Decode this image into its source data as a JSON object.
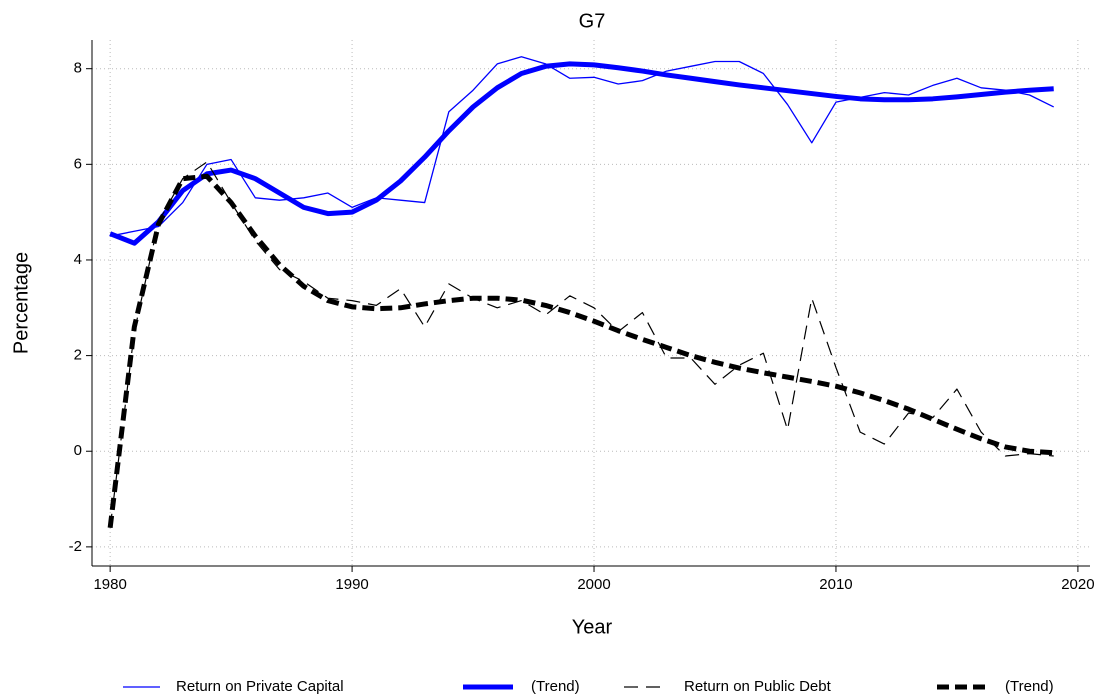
{
  "chart_data": {
    "type": "line",
    "title": "G7",
    "xlabel": "Year",
    "ylabel": "Percentage",
    "x": [
      1980,
      1981,
      1982,
      1983,
      1984,
      1985,
      1986,
      1987,
      1988,
      1989,
      1990,
      1991,
      1992,
      1993,
      1994,
      1995,
      1996,
      1997,
      1998,
      1999,
      2000,
      2001,
      2002,
      2003,
      2004,
      2005,
      2006,
      2007,
      2008,
      2009,
      2010,
      2011,
      2012,
      2013,
      2014,
      2015,
      2016,
      2017,
      2018,
      2019
    ],
    "series": [
      {
        "name": "Return on Private Capital",
        "color": "#0000ff",
        "line_width": 1.3,
        "dash": "none",
        "values": [
          4.5,
          4.6,
          4.7,
          5.2,
          6.0,
          6.1,
          5.3,
          5.25,
          5.3,
          5.4,
          5.1,
          5.3,
          5.25,
          5.2,
          7.1,
          7.55,
          8.1,
          8.25,
          8.1,
          7.8,
          7.82,
          7.68,
          7.75,
          7.95,
          8.05,
          8.15,
          8.15,
          7.9,
          7.25,
          6.45,
          7.3,
          7.4,
          7.5,
          7.45,
          7.65,
          7.8,
          7.6,
          7.55,
          7.45,
          7.2
        ]
      },
      {
        "name": "(Trend)",
        "color": "#0000ff",
        "line_width": 5,
        "dash": "none",
        "values": [
          4.55,
          4.35,
          4.8,
          5.45,
          5.8,
          5.88,
          5.7,
          5.4,
          5.1,
          4.97,
          5.0,
          5.25,
          5.65,
          6.15,
          6.7,
          7.2,
          7.6,
          7.9,
          8.05,
          8.1,
          8.08,
          8.02,
          7.95,
          7.87,
          7.8,
          7.73,
          7.66,
          7.6,
          7.54,
          7.48,
          7.42,
          7.37,
          7.35,
          7.35,
          7.37,
          7.41,
          7.46,
          7.51,
          7.55,
          7.58
        ]
      },
      {
        "name": "Return on Public Debt",
        "color": "#000000",
        "line_width": 1.2,
        "dash": "14 8",
        "values": [
          -1.6,
          2.5,
          4.8,
          5.7,
          6.05,
          5.2,
          4.4,
          3.8,
          3.55,
          3.2,
          3.15,
          3.05,
          3.4,
          2.6,
          3.5,
          3.2,
          3.0,
          3.15,
          2.85,
          3.25,
          3.0,
          2.5,
          2.9,
          1.95,
          1.95,
          1.4,
          1.8,
          2.05,
          0.45,
          3.2,
          1.75,
          0.4,
          0.15,
          0.8,
          0.7,
          1.3,
          0.4,
          -0.1,
          -0.05,
          -0.1
        ]
      },
      {
        "name": "(Trend)",
        "color": "#000000",
        "line_width": 5,
        "dash": "12 6",
        "values": [
          -1.6,
          2.6,
          4.75,
          5.7,
          5.75,
          5.2,
          4.5,
          3.9,
          3.45,
          3.15,
          3.02,
          2.98,
          3.0,
          3.08,
          3.15,
          3.2,
          3.2,
          3.16,
          3.05,
          2.9,
          2.72,
          2.52,
          2.34,
          2.17,
          2.0,
          1.86,
          1.74,
          1.64,
          1.55,
          1.46,
          1.36,
          1.22,
          1.06,
          0.88,
          0.67,
          0.46,
          0.26,
          0.09,
          0.0,
          -0.03
        ]
      }
    ],
    "xlim": [
      1979.25,
      2020.5
    ],
    "ylim": [
      -2.4,
      8.6
    ],
    "xticks": [
      1980,
      1990,
      2000,
      2010,
      2020
    ],
    "yticks": [
      -2,
      0,
      2,
      4,
      6,
      8
    ],
    "grid": true,
    "legend": "bottom"
  }
}
